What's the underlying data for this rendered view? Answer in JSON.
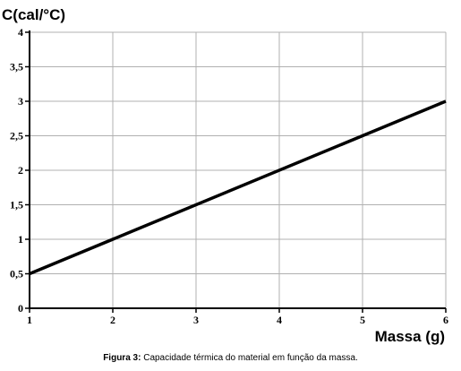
{
  "chart_data": {
    "type": "line",
    "title": "",
    "ylabel": "C(cal/°C)",
    "xlabel": "Massa (g)",
    "x": [
      1,
      6
    ],
    "series": [
      {
        "values": [
          0.5,
          3
        ]
      }
    ],
    "xlim": [
      1,
      6
    ],
    "ylim": [
      0,
      4
    ],
    "x_ticks": [
      "1",
      "2",
      "3",
      "4",
      "5",
      "6"
    ],
    "y_ticks": [
      "0",
      "0,5",
      "1",
      "1,5",
      "2",
      "2,5",
      "3",
      "3,5",
      "4"
    ],
    "grid": true,
    "line_color": "#000000",
    "grid_color": "#b0b0b0"
  },
  "caption": {
    "prefix": "Figura 3:",
    "text": " Capacidade térmica do material em função da massa."
  }
}
